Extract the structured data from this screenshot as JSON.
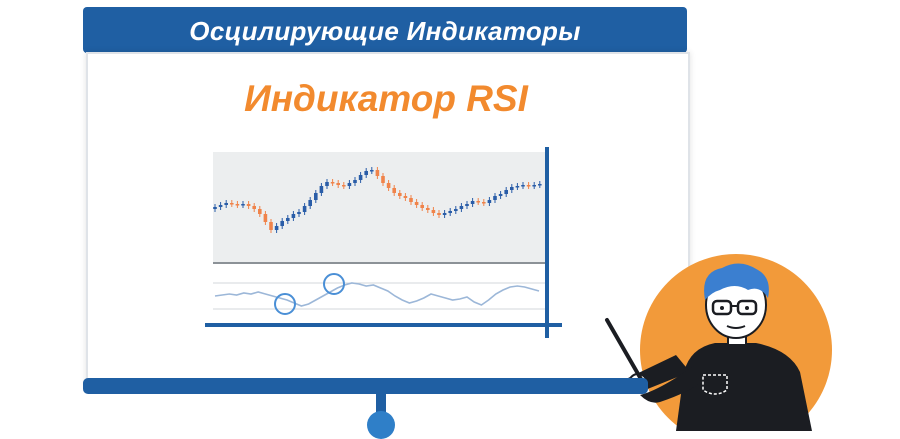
{
  "banner": {
    "title": "Осцилирующие Индикаторы"
  },
  "slide": {
    "subtitle": "Индикатор RSI"
  },
  "colors": {
    "banner": "#1f5fa3",
    "accent_orange": "#f28a2e",
    "candle_up": "#2a5da8",
    "candle_down": "#f0834a",
    "indicator_line": "#9cb7d8",
    "highlight_circle": "#4a8fd6",
    "chart_bg": "#eceeef",
    "presenter_circle": "#f29a3a",
    "presenter_hair": "#3b7fd0"
  },
  "icons": [
    "candlestick-chart-icon",
    "rsi-line-icon",
    "presenter-figure-icon",
    "pointer-stick-icon"
  ]
}
